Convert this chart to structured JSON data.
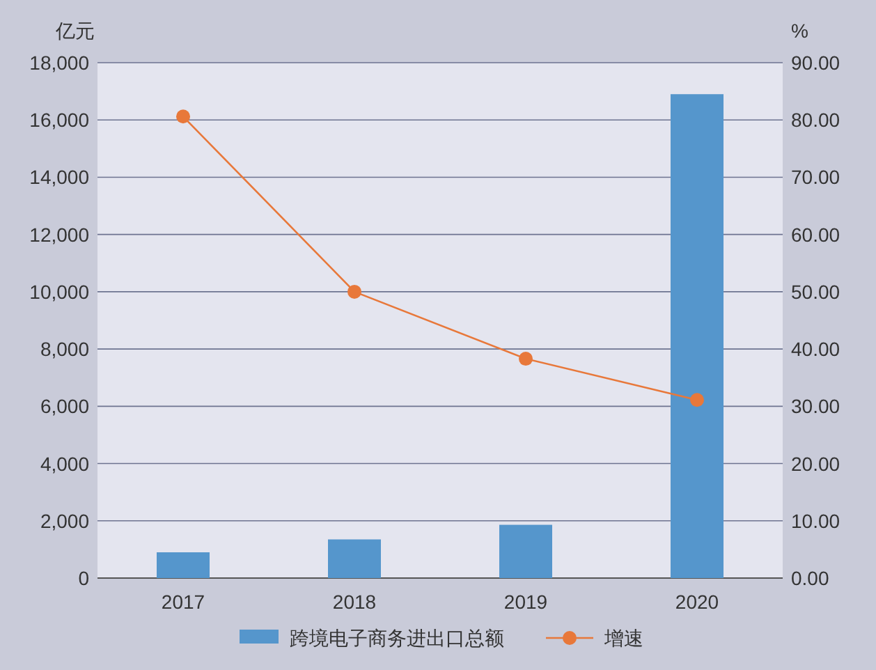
{
  "chart_data": {
    "type": "bar",
    "categories": [
      "2017",
      "2018",
      "2019",
      "2020"
    ],
    "series": [
      {
        "name": "跨境电子商务进出口总额",
        "color": "#5596cc",
        "values": [
          900,
          1350,
          1860,
          16900
        ]
      },
      {
        "name": "增速",
        "type": "line",
        "axis": "y2",
        "color": "#e8783a",
        "marker": "circle",
        "values": [
          80.6,
          50.0,
          38.3,
          31.1
        ]
      }
    ],
    "ylabel": "亿元",
    "y2label": "%",
    "ylim": [
      0,
      18000
    ],
    "yticks": [
      0,
      {
        "value": 2000,
        "label": "2,000"
      },
      {
        "value": 4000,
        "label": "4,000"
      },
      {
        "value": 6000,
        "label": "6,000"
      },
      {
        "value": 8000,
        "label": "8,000"
      },
      {
        "value": 10000,
        "label": "10,000"
      },
      {
        "value": 12000,
        "label": "12,000"
      },
      {
        "value": 14000,
        "label": "14,000"
      },
      {
        "value": 16000,
        "label": "16,000"
      },
      {
        "value": 18000,
        "label": "18,000"
      }
    ],
    "y2lim": [
      0,
      90
    ],
    "y2ticks": [
      {
        "value": 0,
        "label": "0.00"
      },
      {
        "value": 10,
        "label": "10.00"
      },
      {
        "value": 20,
        "label": "20.00"
      },
      {
        "value": 30,
        "label": "30.00"
      },
      {
        "value": 40,
        "label": "40.00"
      },
      {
        "value": 50,
        "label": "50.00"
      },
      {
        "value": 60,
        "label": "60.00"
      },
      {
        "value": 70,
        "label": "70.00"
      },
      {
        "value": 80,
        "label": "80.00"
      },
      {
        "value": 90,
        "label": "90.00"
      }
    ],
    "grid": "y",
    "legend": "bottom"
  }
}
